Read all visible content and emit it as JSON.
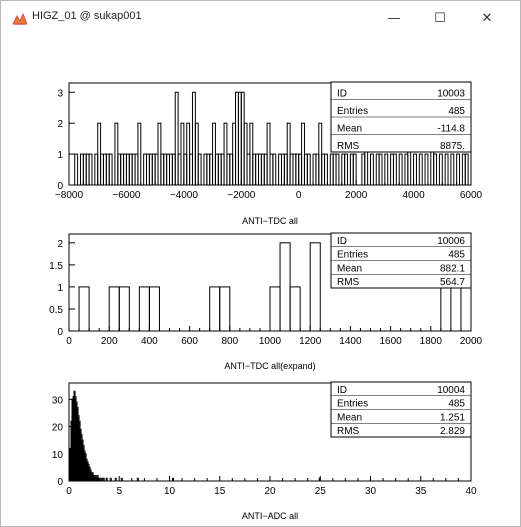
{
  "window": {
    "title": "HIGZ_01 @ sukap001",
    "minimize_symbol": "—",
    "maximize_symbol": "☐",
    "close_symbol": "✕",
    "icon": "higz-app-icon"
  },
  "colors": {
    "line": "#000000",
    "background": "#ffffff",
    "icon_red": "#d9534f",
    "icon_orange": "#e07b39"
  },
  "chart_data": [
    {
      "type": "histogram",
      "title": "ANTI−TDC all",
      "xlim": [
        -8000,
        6000
      ],
      "ylim": [
        0,
        3.3
      ],
      "x_ticks": [
        "−8000",
        "−6000",
        "−4000",
        "−2000",
        "0",
        "2000",
        "4000",
        "6000"
      ],
      "y_ticks": [
        "0",
        "1",
        "2",
        "3"
      ],
      "bin_width": 100,
      "bars": [
        [
          -7800,
          1
        ],
        [
          -7600,
          1
        ],
        [
          -7500,
          1
        ],
        [
          -7400,
          1
        ],
        [
          -7300,
          1
        ],
        [
          -7100,
          1
        ],
        [
          -7000,
          2
        ],
        [
          -6900,
          1
        ],
        [
          -6800,
          1
        ],
        [
          -6700,
          1
        ],
        [
          -6600,
          1
        ],
        [
          -6400,
          2
        ],
        [
          -6300,
          1
        ],
        [
          -6200,
          1
        ],
        [
          -6100,
          1
        ],
        [
          -6000,
          1
        ],
        [
          -5900,
          1
        ],
        [
          -5800,
          1
        ],
        [
          -5700,
          1
        ],
        [
          -5600,
          2
        ],
        [
          -5400,
          1
        ],
        [
          -5300,
          1
        ],
        [
          -5200,
          1
        ],
        [
          -5100,
          1
        ],
        [
          -5000,
          1
        ],
        [
          -4900,
          2
        ],
        [
          -4800,
          1
        ],
        [
          -4700,
          1
        ],
        [
          -4600,
          1
        ],
        [
          -4500,
          1
        ],
        [
          -4400,
          1
        ],
        [
          -4300,
          3
        ],
        [
          -4200,
          1
        ],
        [
          -4100,
          2
        ],
        [
          -4000,
          1
        ],
        [
          -3900,
          2
        ],
        [
          -3800,
          1
        ],
        [
          -3700,
          3
        ],
        [
          -3600,
          2
        ],
        [
          -3500,
          1
        ],
        [
          -3300,
          1
        ],
        [
          -3200,
          1
        ],
        [
          -3100,
          1
        ],
        [
          -3000,
          2
        ],
        [
          -2900,
          1
        ],
        [
          -2800,
          1
        ],
        [
          -2700,
          1
        ],
        [
          -2600,
          2
        ],
        [
          -2500,
          1
        ],
        [
          -2400,
          1
        ],
        [
          -2300,
          2
        ],
        [
          -2200,
          3
        ],
        [
          -2100,
          3
        ],
        [
          -2000,
          3
        ],
        [
          -1900,
          2
        ],
        [
          -1800,
          1
        ],
        [
          -1700,
          2
        ],
        [
          -1600,
          1
        ],
        [
          -1500,
          1
        ],
        [
          -1400,
          1
        ],
        [
          -1300,
          1
        ],
        [
          -1200,
          1
        ],
        [
          -1100,
          2
        ],
        [
          -1000,
          1
        ],
        [
          -900,
          1
        ],
        [
          -700,
          1
        ],
        [
          -600,
          1
        ],
        [
          -500,
          1
        ],
        [
          -400,
          2
        ],
        [
          -300,
          1
        ],
        [
          -200,
          1
        ],
        [
          -100,
          1
        ],
        [
          0,
          1
        ],
        [
          100,
          2
        ],
        [
          200,
          1
        ],
        [
          300,
          1
        ],
        [
          500,
          1
        ],
        [
          600,
          1
        ],
        [
          700,
          2
        ],
        [
          800,
          1
        ],
        [
          900,
          1
        ],
        [
          1100,
          1
        ],
        [
          1200,
          1
        ],
        [
          1300,
          1
        ],
        [
          1500,
          1
        ],
        [
          1600,
          1
        ],
        [
          1800,
          1
        ],
        [
          1900,
          1
        ],
        [
          2200,
          1
        ],
        [
          2300,
          2
        ],
        [
          2500,
          1
        ],
        [
          2700,
          1
        ],
        [
          2800,
          1
        ],
        [
          3000,
          1
        ],
        [
          3200,
          1
        ],
        [
          3300,
          1
        ],
        [
          3500,
          1
        ],
        [
          3700,
          1
        ],
        [
          3800,
          2
        ],
        [
          4000,
          1
        ],
        [
          4200,
          1
        ],
        [
          4400,
          1
        ],
        [
          4600,
          2
        ],
        [
          4700,
          1
        ],
        [
          4900,
          1
        ],
        [
          5100,
          1
        ],
        [
          5300,
          1
        ],
        [
          5500,
          1
        ],
        [
          5700,
          1
        ],
        [
          5800,
          1
        ]
      ],
      "stats": {
        "ID": "10003",
        "Entries": "485",
        "Mean": "-114.8",
        "RMS": "8875."
      }
    },
    {
      "type": "histogram",
      "title": "ANTI−TDC all(expand)",
      "xlim": [
        0,
        2000
      ],
      "ylim": [
        0,
        2.2
      ],
      "x_ticks": [
        "0",
        "200",
        "400",
        "600",
        "800",
        "1000",
        "1200",
        "1400",
        "1600",
        "1800",
        "2000"
      ],
      "y_ticks": [
        "0",
        "0.5",
        "1",
        "1.5",
        "2"
      ],
      "bin_width": 50,
      "bars": [
        [
          50,
          1
        ],
        [
          200,
          1
        ],
        [
          250,
          1
        ],
        [
          350,
          1
        ],
        [
          400,
          1
        ],
        [
          700,
          1
        ],
        [
          750,
          1
        ],
        [
          1000,
          1
        ],
        [
          1050,
          2
        ],
        [
          1100,
          1
        ],
        [
          1200,
          2
        ],
        [
          1850,
          1
        ],
        [
          1950,
          1
        ]
      ],
      "stats": {
        "ID": "10006",
        "Entries": "485",
        "Mean": "882.1",
        "RMS": "564.7"
      }
    },
    {
      "type": "histogram",
      "title": "ANTI−ADC all",
      "xlim": [
        0,
        40
      ],
      "ylim": [
        0,
        36
      ],
      "x_ticks": [
        "0",
        "5",
        "10",
        "15",
        "20",
        "25",
        "30",
        "35",
        "40"
      ],
      "y_ticks": [
        "0",
        "10",
        "20",
        "30"
      ],
      "bin_width": 0.1,
      "bars": [
        [
          0.0,
          4
        ],
        [
          0.1,
          12
        ],
        [
          0.2,
          22
        ],
        [
          0.3,
          30
        ],
        [
          0.4,
          31
        ],
        [
          0.5,
          33
        ],
        [
          0.6,
          31
        ],
        [
          0.7,
          29
        ],
        [
          0.8,
          27
        ],
        [
          0.9,
          24
        ],
        [
          1.0,
          22
        ],
        [
          1.1,
          19
        ],
        [
          1.2,
          17
        ],
        [
          1.3,
          15
        ],
        [
          1.4,
          13
        ],
        [
          1.5,
          11
        ],
        [
          1.6,
          10
        ],
        [
          1.7,
          8
        ],
        [
          1.8,
          7
        ],
        [
          1.9,
          6
        ],
        [
          2.0,
          5
        ],
        [
          2.1,
          4
        ],
        [
          2.2,
          3
        ],
        [
          2.3,
          3
        ],
        [
          2.4,
          2
        ],
        [
          2.5,
          2
        ],
        [
          2.6,
          2
        ],
        [
          2.7,
          1
        ],
        [
          2.8,
          2
        ],
        [
          2.9,
          1
        ],
        [
          3.0,
          1
        ],
        [
          3.2,
          1
        ],
        [
          3.4,
          1
        ],
        [
          3.7,
          1
        ],
        [
          4.1,
          1
        ],
        [
          4.6,
          1
        ],
        [
          5.2,
          1
        ],
        [
          6.8,
          1
        ],
        [
          10.3,
          1
        ],
        [
          24.9,
          1
        ]
      ],
      "stats": {
        "ID": "10004",
        "Entries": "485",
        "Mean": "1.251",
        "RMS": "2.829"
      }
    }
  ]
}
